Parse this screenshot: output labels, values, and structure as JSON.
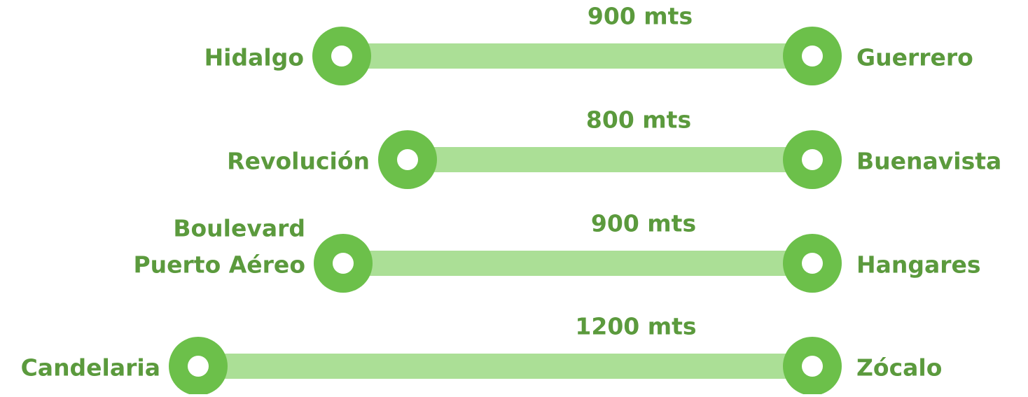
{
  "rows": [
    {
      "from": [
        "Hidalgo"
      ],
      "to": "Guerrero",
      "distance": "900 mts"
    },
    {
      "from": [
        "Revolución"
      ],
      "to": "Buenavista",
      "distance": "800 mts"
    },
    {
      "from": [
        "Boulevard",
        "Puerto Aéreo"
      ],
      "to": "Hangares",
      "distance": "900 mts"
    },
    {
      "from": [
        "Candelaria"
      ],
      "to": "Zócalo",
      "distance": "1200 mts"
    }
  ]
}
